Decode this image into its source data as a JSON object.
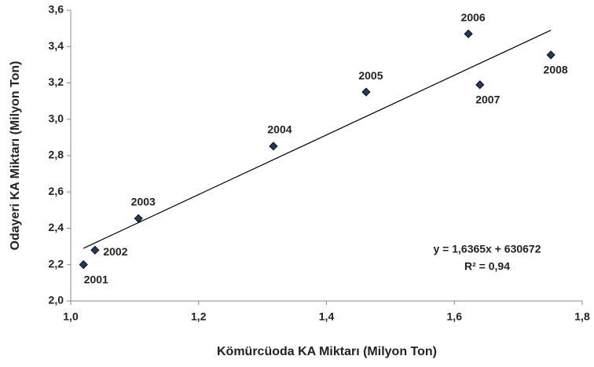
{
  "chart_data": {
    "type": "scatter",
    "x_label": "Kömürcüoda KA Miktarı (Milyon Ton)",
    "y_label": "Odayeri KA Miktarı (Milyon Ton)",
    "x": [
      1.02,
      1.038,
      1.106,
      1.317,
      1.462,
      1.622,
      1.64,
      1.751
    ],
    "values": [
      2.2,
      2.28,
      2.454,
      2.852,
      3.15,
      3.47,
      3.19,
      3.354
    ],
    "labels": [
      "2001",
      "2002",
      "2003",
      "2004",
      "2005",
      "2006",
      "2007",
      "2008"
    ],
    "color": "#1f3864",
    "trendline": {
      "x": [
        1.02,
        1.751
      ],
      "y": [
        2.29,
        3.49
      ]
    },
    "equation": "y = 1,6365x + 630672",
    "r_squared": "R² = 0,94",
    "xlim": [
      1.0,
      1.8
    ],
    "ylim": [
      2.0,
      3.6
    ],
    "xticks": [
      {
        "value": 1.0,
        "label": "1,0"
      },
      {
        "value": 1.2,
        "label": "1,2"
      },
      {
        "value": 1.4,
        "label": "1,4"
      },
      {
        "value": 1.6,
        "label": "1,6"
      },
      {
        "value": 1.8,
        "label": "1,8"
      }
    ],
    "yticks": [
      {
        "value": 2.0,
        "label": "2,0"
      },
      {
        "value": 2.2,
        "label": "2,2"
      },
      {
        "value": 2.4,
        "label": "2,4"
      },
      {
        "value": 2.6,
        "label": "2,6"
      },
      {
        "value": 2.8,
        "label": "2,8"
      },
      {
        "value": 3.0,
        "label": "3,0"
      },
      {
        "value": 3.2,
        "label": "3,2"
      },
      {
        "value": 3.4,
        "label": "3,4"
      },
      {
        "value": 3.6,
        "label": "3,6"
      }
    ]
  }
}
